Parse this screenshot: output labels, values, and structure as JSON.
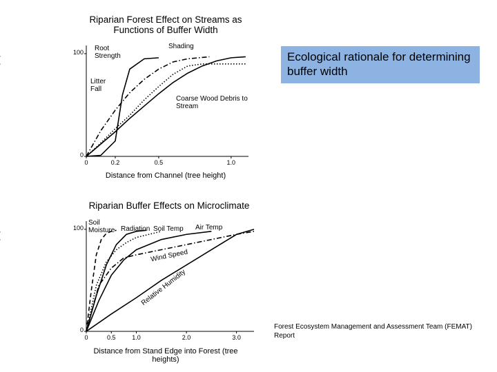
{
  "chart_data": [
    {
      "type": "line",
      "title": "Riparian Forest Effect on Streams as Functions of Buffer Width",
      "x_label": "Distance from Channel (tree height)",
      "y_label": "Cumulative effectiveness (%)",
      "xlim": [
        0,
        1.12
      ],
      "ylim": [
        0,
        108
      ],
      "xticks": [
        0,
        0.2,
        0.5,
        {
          "value": 1,
          "label": "1.0"
        }
      ],
      "yticks": [
        0,
        100
      ],
      "series": [
        {
          "name": "Root Strength",
          "color": "#000000",
          "style": "solid",
          "x": [
            0,
            0.1,
            0.2,
            0.25,
            0.3,
            0.4,
            0.5
          ],
          "values": [
            0,
            1,
            15,
            60,
            85,
            95,
            96
          ]
        },
        {
          "name": "Shading",
          "color": "#000000",
          "style": "dotted",
          "x": [
            0,
            0.1,
            0.2,
            0.3,
            0.4,
            0.5,
            0.6,
            0.7,
            0.8,
            0.9,
            1.0,
            1.1
          ],
          "values": [
            0,
            13,
            27,
            40,
            55,
            68,
            80,
            88,
            90,
            90,
            90,
            90
          ]
        },
        {
          "name": "Litter Fall",
          "color": "#000000",
          "style": "dashdot",
          "x": [
            0,
            0.1,
            0.2,
            0.3,
            0.4,
            0.5,
            0.6,
            0.7,
            0.85
          ],
          "values": [
            0,
            25,
            45,
            62,
            75,
            85,
            92,
            95,
            97
          ]
        },
        {
          "name": "Coarse Wood Debris to Stream",
          "color": "#000000",
          "style": "solid",
          "x": [
            0,
            0.1,
            0.2,
            0.3,
            0.4,
            0.5,
            0.6,
            0.7,
            0.8,
            0.9,
            1.0,
            1.1
          ],
          "values": [
            0,
            12,
            24,
            37,
            49,
            61,
            72,
            81,
            88,
            93,
            96,
            97
          ]
        }
      ]
    },
    {
      "type": "line",
      "title": "Riparian Buffer Effects on Microclimate",
      "x_label": "Distance from Stand Edge into Forest (tree heights)",
      "y_label": "Cumulative effectiveness (%)",
      "xlim": [
        0,
        3.35
      ],
      "ylim": [
        0,
        108
      ],
      "xticks": [
        0,
        0.5,
        {
          "value": 1,
          "label": "1.0"
        },
        {
          "value": 2,
          "label": "2.0"
        },
        {
          "value": 3,
          "label": "3.0"
        }
      ],
      "yticks": [
        0,
        100
      ],
      "series": [
        {
          "name": "Soil Moisture",
          "color": "#000000",
          "style": "dashed",
          "x": [
            0,
            0.1,
            0.2,
            0.3,
            0.4,
            0.5,
            0.6
          ],
          "values": [
            0,
            40,
            75,
            90,
            96,
            98,
            99
          ]
        },
        {
          "name": "Radiation",
          "color": "#000000",
          "style": "solid",
          "x": [
            0,
            0.2,
            0.4,
            0.6,
            0.8,
            1.0,
            1.2
          ],
          "values": [
            0,
            35,
            65,
            85,
            95,
            98,
            99
          ]
        },
        {
          "name": "Soil Temp",
          "color": "#000000",
          "style": "dotted",
          "x": [
            0,
            0.2,
            0.4,
            0.6,
            0.8,
            1.0,
            1.5
          ],
          "values": [
            0,
            45,
            68,
            80,
            87,
            92,
            98
          ]
        },
        {
          "name": "Air Temp",
          "color": "#000000",
          "style": "solid",
          "x": [
            0,
            0.25,
            0.5,
            0.75,
            1.0,
            1.5,
            2.0,
            2.5
          ],
          "values": [
            0,
            30,
            55,
            70,
            80,
            90,
            95,
            98
          ]
        },
        {
          "name": "Wind Speed",
          "color": "#000000",
          "style": "dashdot",
          "x": [
            0,
            0.25,
            0.5,
            0.75,
            1.0,
            1.5,
            2.0,
            2.5,
            3.0,
            3.35
          ],
          "values": [
            0,
            45,
            62,
            72,
            75,
            80,
            85,
            90,
            95,
            98
          ]
        },
        {
          "name": "Relative Humidity",
          "color": "#000000",
          "style": "solid",
          "x": [
            0,
            0.5,
            1.0,
            1.5,
            2.0,
            2.5,
            3.0,
            3.35
          ],
          "values": [
            0,
            17,
            33,
            50,
            65,
            80,
            95,
            100
          ]
        }
      ]
    }
  ],
  "callout": "Ecological rationale for determining buffer width",
  "source": "Forest Ecosystem Management and Assessment Team (FEMAT) Report"
}
